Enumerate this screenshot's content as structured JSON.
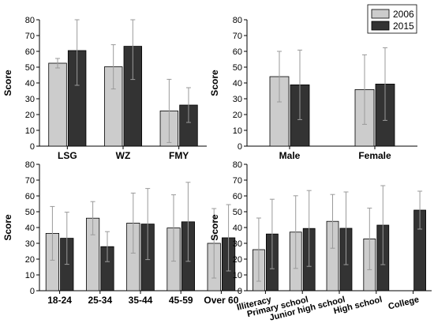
{
  "colors": {
    "2006": "#cccccc",
    "2015": "#333333",
    "axis": "#000000",
    "errbar": "#9a9a9a"
  },
  "legend": {
    "items": [
      "2006",
      "2015"
    ]
  },
  "chart_data": [
    {
      "type": "bar",
      "ylabel": "Score",
      "ylim": [
        0,
        80
      ],
      "yticks": [
        0,
        10,
        20,
        30,
        40,
        50,
        60,
        70,
        80
      ],
      "categories": [
        "LSG",
        "WZ",
        "FMY"
      ],
      "series": [
        {
          "name": "2006",
          "values": [
            52.5,
            50.2,
            22.3
          ],
          "errors": [
            3,
            14,
            20
          ]
        },
        {
          "name": "2015",
          "values": [
            60.5,
            63.2,
            26.0
          ],
          "errors": [
            22,
            21,
            11
          ]
        }
      ],
      "legend": false
    },
    {
      "type": "bar",
      "ylabel": "Score",
      "ylim": [
        0,
        80
      ],
      "yticks": [
        0,
        10,
        20,
        30,
        40,
        50,
        60,
        70,
        80
      ],
      "categories": [
        "Male",
        "Female"
      ],
      "series": [
        {
          "name": "2006",
          "values": [
            44.0,
            35.8
          ],
          "errors": [
            16,
            22
          ]
        },
        {
          "name": "2015",
          "values": [
            38.8,
            39.3
          ],
          "errors": [
            22,
            23
          ]
        }
      ],
      "legend": "top-right"
    },
    {
      "type": "bar",
      "ylabel": "Score",
      "ylim": [
        0,
        80
      ],
      "yticks": [
        0,
        10,
        20,
        30,
        40,
        50,
        60,
        70,
        80
      ],
      "categories": [
        "18-24",
        "25-34",
        "35-44",
        "45-59",
        "Over 60"
      ],
      "series": [
        {
          "name": "2006",
          "values": [
            36.3,
            45.9,
            42.8,
            39.7,
            30.0
          ],
          "errors": [
            17,
            10.5,
            19,
            21,
            22
          ]
        },
        {
          "name": "2015",
          "values": [
            33.2,
            27.9,
            42.2,
            43.6,
            33.5
          ],
          "errors": [
            16.5,
            9.5,
            22.5,
            25,
            21
          ]
        }
      ],
      "legend": false
    },
    {
      "type": "bar",
      "ylabel": "Score",
      "ylim": [
        0,
        80
      ],
      "yticks": [
        0,
        10,
        20,
        30,
        40,
        50,
        60,
        70,
        80
      ],
      "categories": [
        "Illiteracy",
        "Primary school",
        "Junior high school",
        "High school",
        "College"
      ],
      "series": [
        {
          "name": "2006",
          "values": [
            26.0,
            37.1,
            43.9,
            32.8,
            null
          ],
          "errors": [
            20,
            23,
            17,
            19.5,
            null
          ]
        },
        {
          "name": "2015",
          "values": [
            35.9,
            39.4,
            39.5,
            41.5,
            51.0
          ],
          "errors": [
            22,
            24,
            23,
            25,
            12
          ]
        }
      ],
      "legend": false,
      "rotated_labels": true
    }
  ]
}
